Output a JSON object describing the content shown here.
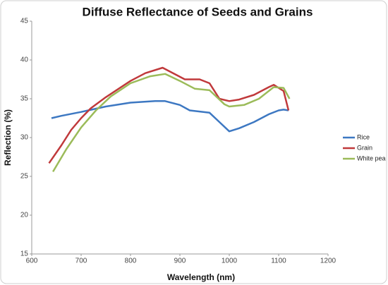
{
  "chart_data": {
    "type": "line",
    "title": "Diffuse Reflectance of Seeds and Grains",
    "x_label": "Wavelength (nm)",
    "y_label": "Reflection (%)",
    "xlim": [
      600,
      1200
    ],
    "xticks": [
      600,
      700,
      800,
      900,
      1000,
      1100,
      1200
    ],
    "ylim": [
      15,
      45
    ],
    "yticks": [
      15,
      20,
      25,
      30,
      35,
      40,
      45
    ],
    "series": [
      {
        "name": "Rice",
        "color": "#3d78c2",
        "x": [
          640,
          660,
          700,
          750,
          800,
          850,
          870,
          900,
          920,
          960,
          980,
          1000,
          1020,
          1050,
          1080,
          1100,
          1110,
          1120
        ],
        "values": [
          32.5,
          32.8,
          33.3,
          34.0,
          34.5,
          34.7,
          34.7,
          34.2,
          33.5,
          33.2,
          32.0,
          30.8,
          31.2,
          32.0,
          33.0,
          33.5,
          33.6,
          33.5
        ]
      },
      {
        "name": "Grain",
        "color": "#c0393b",
        "x": [
          635,
          660,
          680,
          700,
          720,
          750,
          800,
          830,
          865,
          880,
          910,
          940,
          960,
          980,
          1000,
          1020,
          1050,
          1080,
          1090,
          1110,
          1120
        ],
        "values": [
          26.7,
          29.0,
          31.0,
          32.5,
          33.8,
          35.2,
          37.3,
          38.3,
          39.0,
          38.5,
          37.5,
          37.5,
          37.0,
          35.0,
          34.7,
          34.9,
          35.5,
          36.5,
          36.8,
          36.0,
          33.5
        ]
      },
      {
        "name": "White pea",
        "color": "#9bbb59",
        "x": [
          643,
          670,
          700,
          730,
          760,
          800,
          840,
          870,
          900,
          930,
          960,
          990,
          1000,
          1030,
          1060,
          1090,
          1110,
          1122
        ],
        "values": [
          25.6,
          28.5,
          31.3,
          33.5,
          35.3,
          37.0,
          37.9,
          38.2,
          37.3,
          36.3,
          36.1,
          34.3,
          34.0,
          34.2,
          35.0,
          36.5,
          36.4,
          35.0
        ]
      }
    ]
  }
}
